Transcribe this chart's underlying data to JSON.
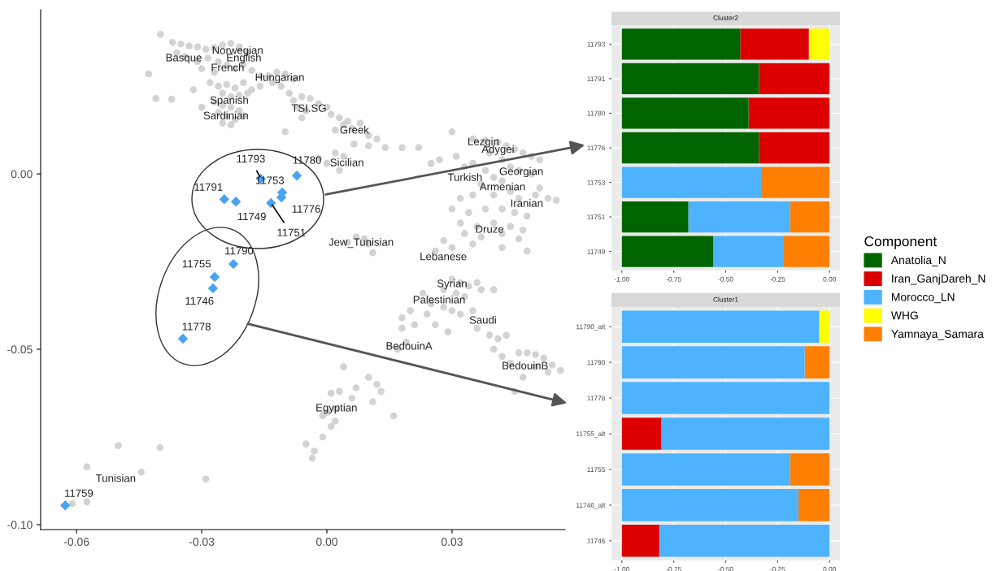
{
  "chart_data": [
    {
      "type": "scatter",
      "xlim": [
        -0.0686,
        0.0571
      ],
      "ylim": [
        -0.1014,
        0.0468
      ],
      "xticks": [
        {
          "value": -0.06,
          "label": "-0.06"
        },
        {
          "value": -0.03,
          "label": "-0.03"
        },
        {
          "value": 0.0,
          "label": "0.00"
        },
        {
          "value": 0.03,
          "label": "0.03"
        }
      ],
      "yticks": [
        {
          "value": -0.1,
          "label": "-0.10"
        },
        {
          "value": -0.05,
          "label": "-0.05"
        },
        {
          "value": 0.0,
          "label": "0.00"
        }
      ],
      "series": [
        {
          "color": "#d3d3d3",
          "marker": "circle",
          "x": [
            -0.0399,
            -0.037,
            -0.035,
            -0.033,
            -0.031,
            -0.029,
            -0.027,
            -0.025,
            -0.023,
            -0.021,
            -0.019,
            -0.036,
            -0.034,
            -0.031,
            -0.0285,
            -0.026,
            -0.024,
            -0.022,
            -0.02,
            -0.018,
            -0.016,
            -0.0427,
            -0.03,
            -0.027,
            -0.028,
            -0.026,
            -0.024,
            -0.022,
            -0.02,
            -0.025,
            -0.023,
            -0.021,
            -0.019,
            -0.027,
            -0.025,
            -0.023,
            -0.021,
            -0.026,
            -0.024,
            -0.022,
            -0.02,
            -0.023,
            -0.025,
            -0.041,
            -0.0372,
            -0.03,
            -0.032,
            -0.018,
            -0.014,
            -0.012,
            -0.01,
            -0.008,
            -0.013,
            -0.016,
            -0.011,
            -0.009,
            -0.008,
            -0.006,
            -0.004,
            -0.002,
            0.0,
            -0.007,
            -0.005,
            0.001,
            0.003,
            0.005,
            -0.006,
            0.004,
            0.006,
            0.008,
            0.002,
            0.01,
            0.012,
            0.0065,
            0.01,
            0.014,
            0.002,
            0.004,
            -0.002,
            0.018,
            0.022,
            0.0,
            0.003,
            -0.01,
            0.007,
            0.009,
            0.01,
            0.011,
            0.005,
            0.03,
            0.035,
            0.038,
            0.041,
            0.043,
            0.045,
            0.047,
            0.049,
            0.051,
            0.039,
            0.042,
            0.044,
            0.046,
            0.049,
            0.035,
            0.038,
            0.04,
            0.042,
            0.037,
            0.033,
            0.031,
            0.027,
            0.025,
            0.035,
            0.04,
            0.044,
            0.046,
            0.05,
            0.053,
            0.055,
            0.051,
            0.032,
            0.03,
            0.034,
            0.038,
            0.042,
            0.045,
            0.048,
            0.032,
            0.036,
            0.04,
            0.044,
            0.047,
            0.033,
            0.037,
            0.042,
            0.046,
            0.028,
            0.03,
            0.035,
            0.042,
            0.048,
            0.026,
            0.03,
            0.032,
            0.034,
            0.036,
            0.028,
            0.031,
            0.033,
            0.037,
            0.04,
            0.023,
            0.025,
            0.028,
            0.03,
            0.032,
            0.035,
            0.024,
            0.02,
            0.018,
            0.021,
            0.026,
            0.029,
            0.018,
            0.019,
            0.017,
            0.036,
            0.039,
            0.041,
            0.043,
            0.04,
            0.042,
            0.046,
            0.048,
            0.05,
            0.052,
            0.054,
            0.056,
            0.05,
            0.053,
            0.047,
            0.044,
            0.045,
            0.004,
            0.01,
            0.012,
            0.013,
            0.007,
            0.003,
            0.001,
            0.006,
            0.002,
            0.0,
            -0.001,
            0.011,
            0.016,
            0.001,
            -0.001,
            -0.005,
            -0.003,
            -0.0035,
            0.002,
            -0.05,
            -0.04,
            -0.0575,
            -0.0445,
            -0.029,
            -0.0575,
            -0.061
          ],
          "values": [
            0.0398,
            0.0375,
            0.037,
            0.0365,
            0.0362,
            0.0355,
            0.036,
            0.0368,
            0.0372,
            0.0362,
            0.0345,
            0.0345,
            0.0335,
            0.032,
            0.033,
            0.032,
            0.031,
            0.03,
            0.0312,
            0.0295,
            0.028,
            0.0285,
            0.03,
            0.029,
            0.026,
            0.025,
            0.0255,
            0.0245,
            0.026,
            0.023,
            0.022,
            0.0225,
            0.023,
            0.0205,
            0.0195,
            0.019,
            0.018,
            0.0175,
            0.0165,
            0.0155,
            0.0165,
            0.014,
            0.0145,
            0.0215,
            0.0213,
            0.019,
            0.024,
            0.024,
            0.028,
            0.029,
            0.0285,
            0.027,
            0.026,
            0.025,
            0.025,
            0.023,
            0.021,
            0.022,
            0.0215,
            0.02,
            0.019,
            0.019,
            0.018,
            0.017,
            0.016,
            0.015,
            0.016,
            0.014,
            0.013,
            0.0145,
            0.0125,
            0.011,
            0.01,
            0.0085,
            0.008,
            0.0075,
            0.006,
            0.005,
            0.0045,
            0.0075,
            0.0075,
            0.003,
            0.001,
            0.012,
            -0.018,
            -0.0185,
            -0.02,
            -0.0225,
            -0.0195,
            0.012,
            0.01,
            0.0095,
            0.009,
            0.008,
            0.007,
            0.006,
            0.005,
            0.004,
            0.006,
            0.004,
            0.002,
            0.001,
            0.0,
            0.003,
            0.001,
            -0.001,
            -0.002,
            -0.003,
            0.002,
            0.005,
            0.004,
            0.003,
            -0.006,
            -0.006,
            -0.005,
            -0.007,
            -0.006,
            -0.007,
            -0.0075,
            -0.004,
            -0.007,
            -0.01,
            -0.011,
            -0.01,
            -0.01,
            -0.011,
            -0.012,
            -0.014,
            -0.015,
            -0.014,
            -0.015,
            -0.016,
            -0.017,
            -0.018,
            -0.017,
            -0.0185,
            -0.019,
            -0.021,
            -0.02,
            -0.021,
            -0.022,
            -0.022,
            -0.03,
            -0.031,
            -0.032,
            -0.031,
            -0.033,
            -0.034,
            -0.035,
            -0.033,
            -0.033,
            -0.034,
            -0.037,
            -0.038,
            -0.039,
            -0.04,
            -0.039,
            -0.04,
            -0.039,
            -0.041,
            -0.043,
            -0.043,
            -0.045,
            -0.044,
            -0.048,
            -0.05,
            -0.044,
            -0.046,
            -0.047,
            -0.046,
            -0.05,
            -0.052,
            -0.051,
            -0.051,
            -0.0515,
            -0.0525,
            -0.0545,
            -0.056,
            -0.055,
            -0.0565,
            -0.058,
            -0.054,
            -0.062,
            -0.055,
            -0.058,
            -0.06,
            -0.062,
            -0.061,
            -0.062,
            -0.0625,
            -0.064,
            -0.067,
            -0.068,
            -0.069,
            -0.065,
            -0.069,
            -0.072,
            -0.075,
            -0.077,
            -0.079,
            -0.081,
            -0.0705,
            -0.0775,
            -0.078,
            -0.0835,
            -0.085,
            -0.087,
            -0.0935,
            -0.094
          ]
        },
        {
          "name": "11793",
          "color": "#4aa3f0",
          "marker": "diamond",
          "x": [
            -0.0158
          ],
          "values": [
            -0.0014
          ]
        },
        {
          "name": "11780",
          "color": "#4aa3f0",
          "marker": "diamond",
          "x": [
            -0.0072
          ],
          "values": [
            -0.0005
          ]
        },
        {
          "name": "11753",
          "color": "#4aa3f0",
          "marker": "diamond",
          "x": [
            -0.0107
          ],
          "values": [
            -0.0053
          ]
        },
        {
          "name": "11776",
          "color": "#4aa3f0",
          "marker": "diamond",
          "x": [
            -0.0109
          ],
          "values": [
            -0.0067
          ]
        },
        {
          "name": "11791",
          "color": "#4aa3f0",
          "marker": "diamond",
          "x": [
            -0.0246
          ],
          "values": [
            -0.0072
          ]
        },
        {
          "name": "11749",
          "color": "#4aa3f0",
          "marker": "diamond",
          "x": [
            -0.0218
          ],
          "values": [
            -0.0079
          ]
        },
        {
          "name": "11751",
          "color": "#4aa3f0",
          "marker": "diamond",
          "x": [
            -0.0134
          ],
          "values": [
            -0.0083
          ]
        },
        {
          "name": "11790",
          "color": "#4aa3f0",
          "marker": "diamond",
          "x": [
            -0.0224
          ],
          "values": [
            -0.0257
          ]
        },
        {
          "name": "11755",
          "color": "#4aa3f0",
          "marker": "diamond",
          "x": [
            -0.0269
          ],
          "values": [
            -0.0294
          ]
        },
        {
          "name": "11746",
          "color": "#4aa3f0",
          "marker": "diamond",
          "x": [
            -0.0273
          ],
          "values": [
            -0.0326
          ]
        },
        {
          "name": "11778",
          "color": "#4aa3f0",
          "marker": "diamond",
          "x": [
            -0.0345
          ],
          "values": [
            -0.047
          ]
        },
        {
          "name": "11759",
          "color": "#4aa3f0",
          "marker": "diamond",
          "x": [
            -0.0627
          ],
          "values": [
            -0.0945
          ]
        }
      ],
      "annotations": [
        "Basque",
        "Norwegian",
        "English",
        "French",
        "Hungarian",
        "Spanish",
        "Sardinian",
        "TSI.SG",
        "Greek",
        "Sicilian",
        "Lezgin",
        "Adygei",
        "Georgian",
        "Turkish",
        "Armenian",
        "Iranian",
        "Druze",
        "Jew_Tunisian",
        "Lebanese",
        "Syrian",
        "Palestinian",
        "Saudi",
        "BedouinA",
        "BedouinB",
        "Egyptian",
        "Tunisian"
      ]
    },
    {
      "type": "bar",
      "title": "Cluster2",
      "orientation": "horizontal",
      "stacked": true,
      "categories": [
        "11793",
        "11791",
        "11780",
        "11776",
        "11753",
        "11751",
        "11749"
      ],
      "xlim": [
        -1.05,
        0.05
      ],
      "xticks": [
        {
          "value": -1.0,
          "label": "-1.00"
        },
        {
          "value": -0.75,
          "label": "-0.75"
        },
        {
          "value": -0.5,
          "label": "-0.50"
        },
        {
          "value": -0.25,
          "label": "-0.25"
        },
        {
          "value": 0.0,
          "label": "0.00"
        }
      ],
      "grid": true,
      "legend": "right",
      "legend_title": "Component",
      "series": [
        {
          "name": "Yamnaya_Samara",
          "color": "#ff7f00",
          "values": [
            0,
            0,
            0,
            0,
            -0.33,
            -0.19,
            -0.22
          ]
        },
        {
          "name": "WHG",
          "color": "#ffff00",
          "values": [
            -0.1,
            0,
            0,
            0,
            0,
            0,
            0
          ]
        },
        {
          "name": "Morocco_LN",
          "color": "#4db3ff",
          "values": [
            0,
            0,
            0,
            0,
            -0.67,
            -0.49,
            -0.34
          ]
        },
        {
          "name": "Iran_GanjDareh_N",
          "color": "#dd0000",
          "values": [
            -0.33,
            -0.34,
            -0.39,
            -0.34,
            0,
            0,
            0
          ]
        },
        {
          "name": "Anatolia_N",
          "color": "#006400",
          "values": [
            -0.57,
            -0.66,
            -0.61,
            -0.66,
            0,
            -0.32,
            -0.44
          ]
        }
      ]
    },
    {
      "type": "bar",
      "title": "Cluster1",
      "orientation": "horizontal",
      "stacked": true,
      "categories": [
        "11790_alt",
        "11790",
        "11778",
        "11755_alt",
        "11755",
        "11746_alt",
        "11746"
      ],
      "xlim": [
        -1.05,
        0.05
      ],
      "xticks": [
        {
          "value": -1.0,
          "label": "-1.00"
        },
        {
          "value": -0.75,
          "label": "-0.75"
        },
        {
          "value": -0.5,
          "label": "-0.50"
        },
        {
          "value": -0.25,
          "label": "-0.25"
        },
        {
          "value": 0.0,
          "label": "0.00"
        }
      ],
      "grid": true,
      "legend": "right",
      "series": [
        {
          "name": "Yamnaya_Samara",
          "color": "#ff7f00",
          "values": [
            0,
            -0.12,
            0,
            0,
            -0.19,
            -0.15,
            0
          ]
        },
        {
          "name": "WHG",
          "color": "#ffff00",
          "values": [
            -0.05,
            0,
            0,
            0,
            0,
            0,
            0
          ]
        },
        {
          "name": "Morocco_LN",
          "color": "#4db3ff",
          "values": [
            -0.95,
            -0.88,
            -1.0,
            -0.81,
            -0.81,
            -0.85,
            -0.82
          ]
        },
        {
          "name": "Iran_GanjDareh_N",
          "color": "#dd0000",
          "values": [
            0,
            0,
            0,
            -0.19,
            0,
            0,
            -0.18
          ]
        }
      ]
    }
  ]
}
